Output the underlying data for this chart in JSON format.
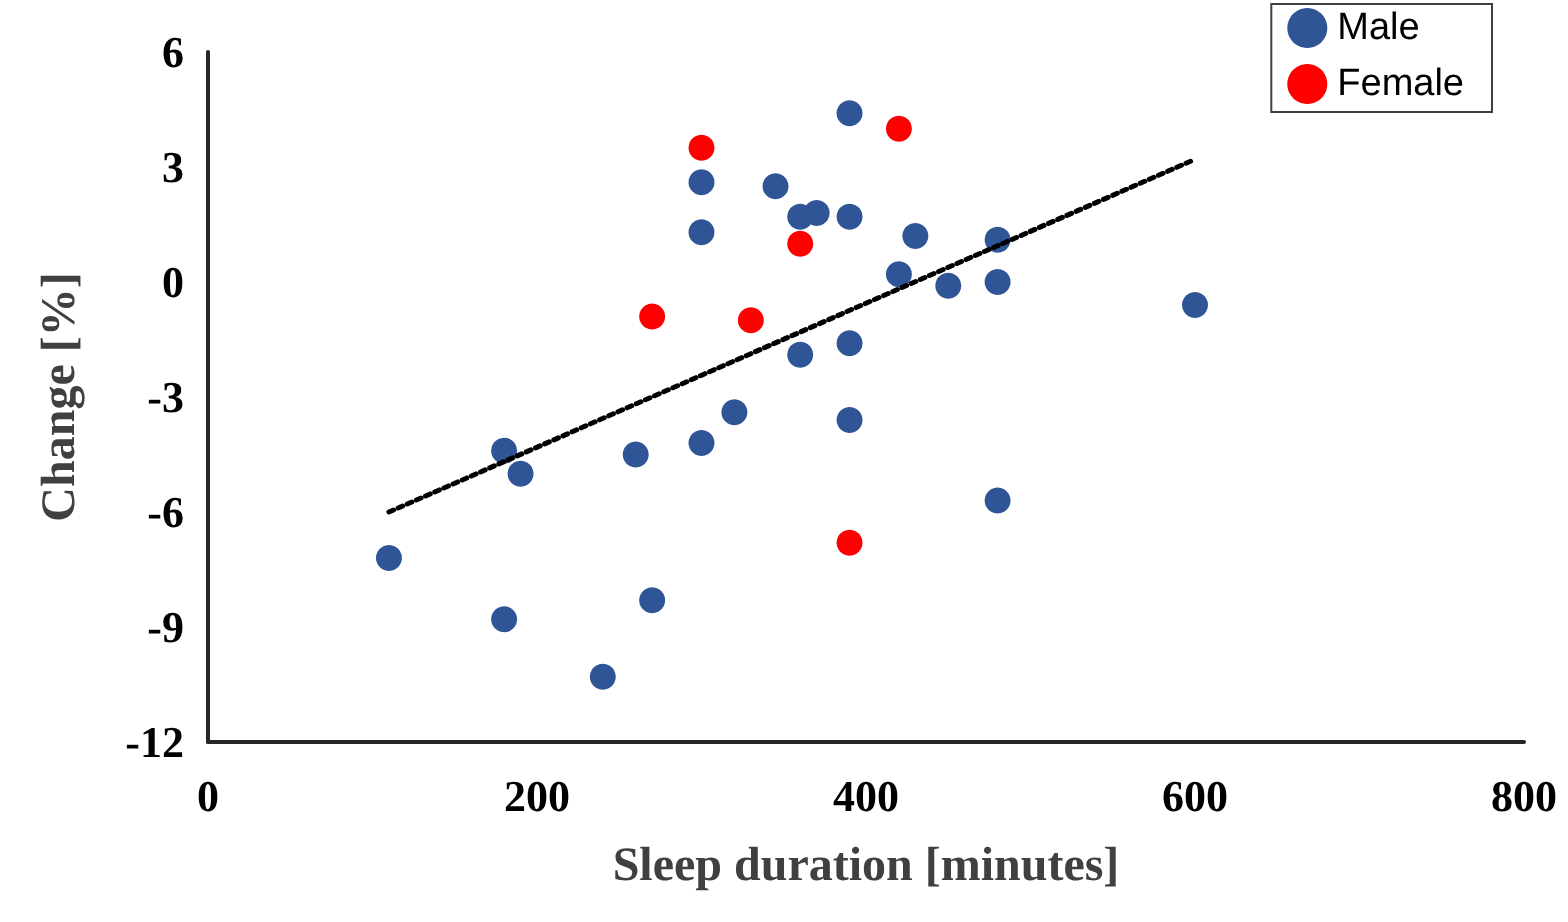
{
  "chart_data": {
    "type": "scatter",
    "xlabel": "Sleep duration [minutes]",
    "ylabel": "Change [%]",
    "xlim": [
      0,
      800
    ],
    "xticks": [
      0,
      200,
      400,
      600,
      800
    ],
    "ylim": [
      -12,
      6
    ],
    "yticks": [
      -12,
      -9,
      -6,
      -3,
      0,
      3,
      6
    ],
    "grid": false,
    "legend": "top right",
    "marker": "circle",
    "series": [
      {
        "name": "Male",
        "color": "#2f5597",
        "x": [
          110,
          180,
          190,
          180,
          240,
          270,
          260,
          300,
          320,
          300,
          300,
          345,
          360,
          370,
          390,
          390,
          360,
          390,
          390,
          430,
          420,
          450,
          480,
          480,
          480,
          600
        ],
        "values": [
          -7.2,
          -4.4,
          -5.0,
          -8.8,
          -10.3,
          -8.3,
          -4.5,
          -4.2,
          -3.4,
          1.3,
          2.6,
          2.5,
          1.7,
          1.8,
          1.7,
          4.4,
          -1.9,
          -1.6,
          -3.6,
          1.2,
          0.2,
          -0.1,
          1.1,
          0.0,
          -5.7,
          -0.6
        ]
      },
      {
        "name": "Female",
        "color": "#ff0000",
        "x": [
          300,
          360,
          270,
          330,
          390,
          420
        ],
        "values": [
          3.5,
          1.0,
          -0.9,
          -1.0,
          -6.8,
          4.0
        ]
      },
      {
        "type": "line",
        "color": "#000000",
        "line_style": "dotted",
        "marker": "none",
        "x": [
          110,
          600
        ],
        "values": [
          -6.0,
          3.2
        ]
      }
    ]
  }
}
